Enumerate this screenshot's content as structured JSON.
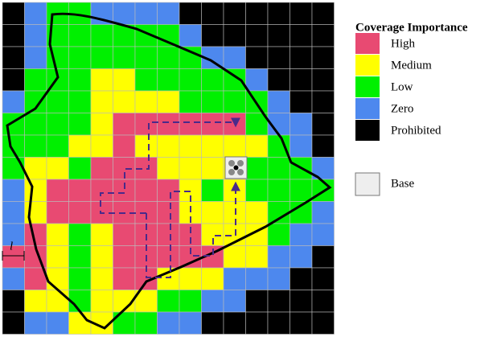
{
  "legend": {
    "title": "Coverage Importance",
    "items": [
      {
        "label": "High",
        "color": "#e84a72"
      },
      {
        "label": "Medium",
        "color": "#ffff00"
      },
      {
        "label": "Low",
        "color": "#00f000"
      },
      {
        "label": "Zero",
        "color": "#4d88ee"
      },
      {
        "label": "Prohibited",
        "color": "#000000"
      }
    ],
    "base": "Base"
  },
  "map": {
    "cell_label": "l"
  }
}
